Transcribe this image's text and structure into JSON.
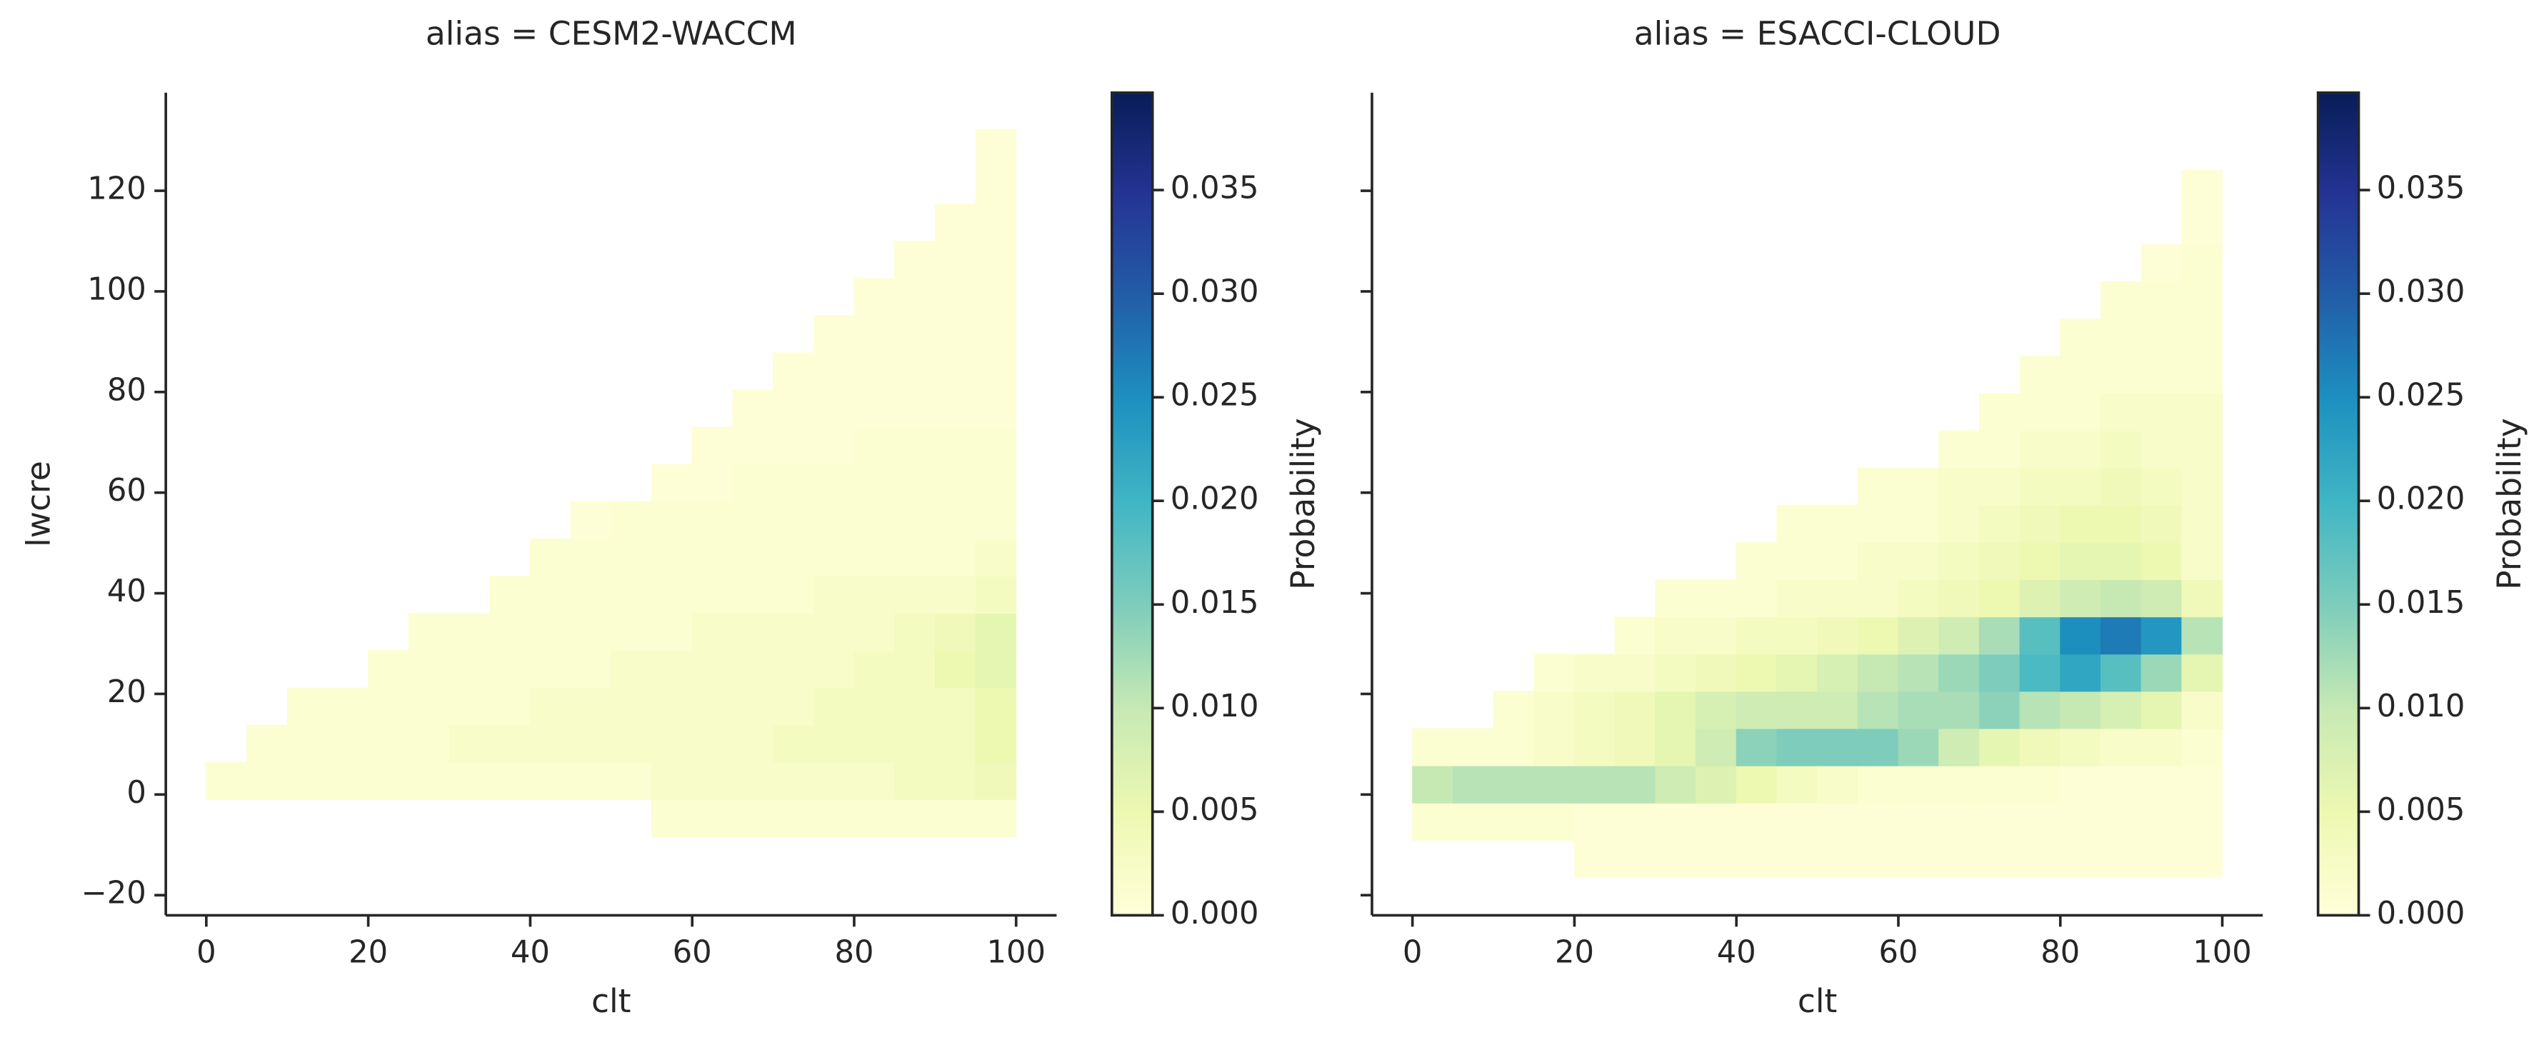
{
  "chart_data": [
    {
      "type": "heatmap",
      "title": "alias = CESM2-WACCM",
      "xlabel": "clt",
      "ylabel": "lwcre",
      "x_edges": [
        0,
        5,
        10,
        15,
        20,
        25,
        30,
        35,
        40,
        45,
        50,
        55,
        60,
        65,
        70,
        75,
        80,
        85,
        90,
        95,
        100
      ],
      "y_edges": [
        -8.4,
        -1,
        6.4,
        13.8,
        21.2,
        28.6,
        36,
        43.4,
        50.8,
        58.2,
        65.6,
        73,
        80.4,
        87.8,
        95.2,
        102.6,
        110,
        117.4,
        124.8,
        132.2
      ],
      "z": [
        [
          null,
          null,
          null,
          null,
          null,
          null,
          null,
          null,
          null,
          null,
          null,
          0.001,
          0.001,
          0.001,
          0.001,
          0.001,
          0.001,
          0.001,
          0.001,
          0.001
        ],
        [
          0.001,
          0.001,
          0.001,
          0.001,
          0.001,
          0.001,
          0.001,
          0.001,
          0.001,
          0.001,
          0.001,
          0.002,
          0.002,
          0.002,
          0.002,
          0.002,
          0.002,
          0.003,
          0.003,
          0.004
        ],
        [
          null,
          0.001,
          0.001,
          0.001,
          0.001,
          0.001,
          0.002,
          0.002,
          0.002,
          0.002,
          0.002,
          0.002,
          0.002,
          0.002,
          0.003,
          0.003,
          0.003,
          0.003,
          0.003,
          0.005
        ],
        [
          null,
          null,
          0.001,
          0.001,
          0.001,
          0.001,
          0.001,
          0.001,
          0.002,
          0.002,
          0.002,
          0.002,
          0.002,
          0.002,
          0.002,
          0.003,
          0.003,
          0.003,
          0.003,
          0.005
        ],
        [
          null,
          null,
          null,
          null,
          0.001,
          0.001,
          0.001,
          0.001,
          0.001,
          0.001,
          0.002,
          0.002,
          0.002,
          0.002,
          0.002,
          0.002,
          0.003,
          0.003,
          0.005,
          0.006
        ],
        [
          null,
          null,
          null,
          null,
          null,
          0.001,
          0.001,
          0.001,
          0.001,
          0.001,
          0.001,
          0.001,
          0.002,
          0.002,
          0.002,
          0.002,
          0.002,
          0.003,
          0.004,
          0.006
        ],
        [
          null,
          null,
          null,
          null,
          null,
          null,
          null,
          0.001,
          0.001,
          0.001,
          0.001,
          0.001,
          0.001,
          0.001,
          0.001,
          0.002,
          0.002,
          0.002,
          0.002,
          0.003
        ],
        [
          null,
          null,
          null,
          null,
          null,
          null,
          null,
          null,
          0.001,
          0.001,
          0.001,
          0.001,
          0.001,
          0.001,
          0.001,
          0.001,
          0.001,
          0.001,
          0.001,
          0.002
        ],
        [
          null,
          null,
          null,
          null,
          null,
          null,
          null,
          null,
          null,
          0.0005,
          0.001,
          0.001,
          0.001,
          0.001,
          0.001,
          0.001,
          0.001,
          0.001,
          0.001,
          0.001
        ],
        [
          null,
          null,
          null,
          null,
          null,
          null,
          null,
          null,
          null,
          null,
          null,
          0.0005,
          0.0005,
          0.001,
          0.001,
          0.001,
          0.001,
          0.001,
          0.001,
          0.001
        ],
        [
          null,
          null,
          null,
          null,
          null,
          null,
          null,
          null,
          null,
          null,
          null,
          null,
          0.0005,
          0.0005,
          0.0005,
          0.0005,
          0.001,
          0.001,
          0.001,
          0.001
        ],
        [
          null,
          null,
          null,
          null,
          null,
          null,
          null,
          null,
          null,
          null,
          null,
          null,
          null,
          0.0005,
          0.0005,
          0.0005,
          0.0005,
          0.0005,
          0.0005,
          0.0005
        ],
        [
          null,
          null,
          null,
          null,
          null,
          null,
          null,
          null,
          null,
          null,
          null,
          null,
          null,
          null,
          0.0005,
          0.0005,
          0.0005,
          0.0005,
          0.0005,
          0.0005
        ],
        [
          null,
          null,
          null,
          null,
          null,
          null,
          null,
          null,
          null,
          null,
          null,
          null,
          null,
          null,
          null,
          0.0005,
          0.0005,
          0.0005,
          0.0005,
          0.0005
        ],
        [
          null,
          null,
          null,
          null,
          null,
          null,
          null,
          null,
          null,
          null,
          null,
          null,
          null,
          null,
          null,
          null,
          0.0005,
          0.0005,
          0.0005,
          0.0005
        ],
        [
          null,
          null,
          null,
          null,
          null,
          null,
          null,
          null,
          null,
          null,
          null,
          null,
          null,
          null,
          null,
          null,
          null,
          0.0005,
          0.0005,
          0.0005
        ],
        [
          null,
          null,
          null,
          null,
          null,
          null,
          null,
          null,
          null,
          null,
          null,
          null,
          null,
          null,
          null,
          null,
          null,
          null,
          0.0005,
          0.0005
        ],
        [
          null,
          null,
          null,
          null,
          null,
          null,
          null,
          null,
          null,
          null,
          null,
          null,
          null,
          null,
          null,
          null,
          null,
          null,
          null,
          0.0005
        ],
        [
          null,
          null,
          null,
          null,
          null,
          null,
          null,
          null,
          null,
          null,
          null,
          null,
          null,
          null,
          null,
          null,
          null,
          null,
          null,
          0.0005
        ]
      ],
      "xlim": [
        -5,
        105
      ],
      "xticks": [
        0,
        20,
        40,
        60,
        80,
        100
      ],
      "ylim": [
        -24,
        139.5
      ],
      "yticks": [
        {
          "value": -20,
          "label": "−20"
        },
        0,
        20,
        40,
        60,
        80,
        100,
        120
      ],
      "colormap": [
        "#ffffd9",
        "#edf8b1",
        "#c7e9b4",
        "#7fcdbb",
        "#41b6c4",
        "#1d91c0",
        "#225ea8",
        "#253494",
        "#081d58"
      ],
      "colorbar": {
        "label": "Probability",
        "lim": [
          0,
          0.0397
        ],
        "ticks": [
          {
            "value": 0,
            "label": "0.000"
          },
          {
            "value": 0.005,
            "label": "0.005"
          },
          {
            "value": 0.01,
            "label": "0.010"
          },
          {
            "value": 0.015,
            "label": "0.015"
          },
          {
            "value": 0.02,
            "label": "0.020"
          },
          {
            "value": 0.025,
            "label": "0.025"
          },
          {
            "value": 0.03,
            "label": "0.030"
          },
          {
            "value": 0.035,
            "label": "0.035"
          }
        ]
      }
    },
    {
      "type": "heatmap",
      "title": "alias = ESACCI-CLOUD",
      "xlabel": "clt",
      "sharey": true,
      "x_edges": [
        0,
        5,
        10,
        15,
        20,
        25,
        30,
        35,
        40,
        45,
        50,
        55,
        60,
        65,
        70,
        75,
        80,
        85,
        90,
        95,
        100
      ],
      "y_edges": [
        -16.5,
        -9.1,
        -1.7,
        5.7,
        13.1,
        20.5,
        27.9,
        35.3,
        42.7,
        50.1,
        57.5,
        64.9,
        72.3,
        79.7,
        87.1,
        94.5,
        101.9,
        109.3,
        116.7,
        124.1
      ],
      "z": [
        [
          null,
          null,
          null,
          null,
          0.0005,
          0.0005,
          0.0005,
          0.0005,
          0.0005,
          0.0005,
          0.0005,
          0.0005,
          0.0005,
          0.0005,
          0.0005,
          0.0005,
          0.0005,
          0.0005,
          0.0005,
          0.0005
        ],
        [
          0.001,
          0.001,
          0.001,
          0.001,
          0.0005,
          0.0005,
          0.0005,
          0.0005,
          0.0005,
          0.0005,
          0.0005,
          0.0005,
          0.0005,
          0.0005,
          0.0005,
          0.0005,
          0.0005,
          0.0005,
          0.0005,
          0.0005
        ],
        [
          0.01,
          0.011,
          0.011,
          0.011,
          0.011,
          0.011,
          0.009,
          0.007,
          0.005,
          0.003,
          0.002,
          0.001,
          0.001,
          0.001,
          0.001,
          0.001,
          0.0005,
          0.0005,
          0.0005,
          0.0005
        ],
        [
          0.001,
          0.001,
          0.001,
          0.002,
          0.003,
          0.004,
          0.006,
          0.009,
          0.014,
          0.015,
          0.015,
          0.015,
          0.013,
          0.009,
          0.006,
          0.004,
          0.003,
          0.002,
          0.002,
          0.001
        ],
        [
          null,
          null,
          0.001,
          0.002,
          0.003,
          0.004,
          0.006,
          0.008,
          0.009,
          0.009,
          0.009,
          0.011,
          0.012,
          0.012,
          0.014,
          0.011,
          0.01,
          0.008,
          0.006,
          0.002
        ],
        [
          null,
          null,
          null,
          0.001,
          0.002,
          0.002,
          0.003,
          0.004,
          0.005,
          0.006,
          0.008,
          0.01,
          0.011,
          0.013,
          0.015,
          0.019,
          0.022,
          0.018,
          0.013,
          0.006
        ],
        [
          null,
          null,
          null,
          null,
          null,
          0.001,
          0.002,
          0.002,
          0.003,
          0.003,
          0.004,
          0.005,
          0.007,
          0.009,
          0.012,
          0.018,
          0.025,
          0.027,
          0.024,
          0.011
        ],
        [
          null,
          null,
          null,
          null,
          null,
          null,
          0.001,
          0.001,
          0.001,
          0.002,
          0.002,
          0.002,
          0.003,
          0.004,
          0.005,
          0.007,
          0.009,
          0.01,
          0.009,
          0.004
        ],
        [
          null,
          null,
          null,
          null,
          null,
          null,
          null,
          null,
          0.001,
          0.001,
          0.001,
          0.002,
          0.002,
          0.003,
          0.004,
          0.005,
          0.006,
          0.006,
          0.005,
          0.002
        ],
        [
          null,
          null,
          null,
          null,
          null,
          null,
          null,
          null,
          null,
          0.001,
          0.001,
          0.001,
          0.001,
          0.002,
          0.003,
          0.004,
          0.005,
          0.005,
          0.004,
          0.002
        ],
        [
          null,
          null,
          null,
          null,
          null,
          null,
          null,
          null,
          null,
          null,
          null,
          0.001,
          0.001,
          0.002,
          0.002,
          0.003,
          0.003,
          0.004,
          0.003,
          0.002
        ],
        [
          null,
          null,
          null,
          null,
          null,
          null,
          null,
          null,
          null,
          null,
          null,
          null,
          null,
          0.001,
          0.001,
          0.002,
          0.002,
          0.003,
          0.002,
          0.002
        ],
        [
          null,
          null,
          null,
          null,
          null,
          null,
          null,
          null,
          null,
          null,
          null,
          null,
          null,
          null,
          0.001,
          0.001,
          0.001,
          0.002,
          0.002,
          0.002
        ],
        [
          null,
          null,
          null,
          null,
          null,
          null,
          null,
          null,
          null,
          null,
          null,
          null,
          null,
          null,
          null,
          0.001,
          0.001,
          0.001,
          0.001,
          0.001
        ],
        [
          null,
          null,
          null,
          null,
          null,
          null,
          null,
          null,
          null,
          null,
          null,
          null,
          null,
          null,
          null,
          null,
          0.001,
          0.001,
          0.001,
          0.001
        ],
        [
          null,
          null,
          null,
          null,
          null,
          null,
          null,
          null,
          null,
          null,
          null,
          null,
          null,
          null,
          null,
          null,
          null,
          0.001,
          0.001,
          0.001
        ],
        [
          null,
          null,
          null,
          null,
          null,
          null,
          null,
          null,
          null,
          null,
          null,
          null,
          null,
          null,
          null,
          null,
          null,
          null,
          0.0005,
          0.001
        ],
        [
          null,
          null,
          null,
          null,
          null,
          null,
          null,
          null,
          null,
          null,
          null,
          null,
          null,
          null,
          null,
          null,
          null,
          null,
          null,
          0.0005
        ],
        [
          null,
          null,
          null,
          null,
          null,
          null,
          null,
          null,
          null,
          null,
          null,
          null,
          null,
          null,
          null,
          null,
          null,
          null,
          null,
          0.0005
        ]
      ],
      "xlim": [
        -5,
        105
      ],
      "xticks": [
        0,
        20,
        40,
        60,
        80,
        100
      ],
      "colormap": [
        "#ffffd9",
        "#edf8b1",
        "#c7e9b4",
        "#7fcdbb",
        "#41b6c4",
        "#1d91c0",
        "#225ea8",
        "#253494",
        "#081d58"
      ],
      "colorbar": {
        "label": "Probability",
        "lim": [
          0,
          0.0397
        ],
        "ticks": [
          {
            "value": 0,
            "label": "0.000"
          },
          {
            "value": 0.005,
            "label": "0.005"
          },
          {
            "value": 0.01,
            "label": "0.010"
          },
          {
            "value": 0.015,
            "label": "0.015"
          },
          {
            "value": 0.02,
            "label": "0.020"
          },
          {
            "value": 0.025,
            "label": "0.025"
          },
          {
            "value": 0.03,
            "label": "0.030"
          },
          {
            "value": 0.035,
            "label": "0.035"
          }
        ]
      }
    }
  ]
}
